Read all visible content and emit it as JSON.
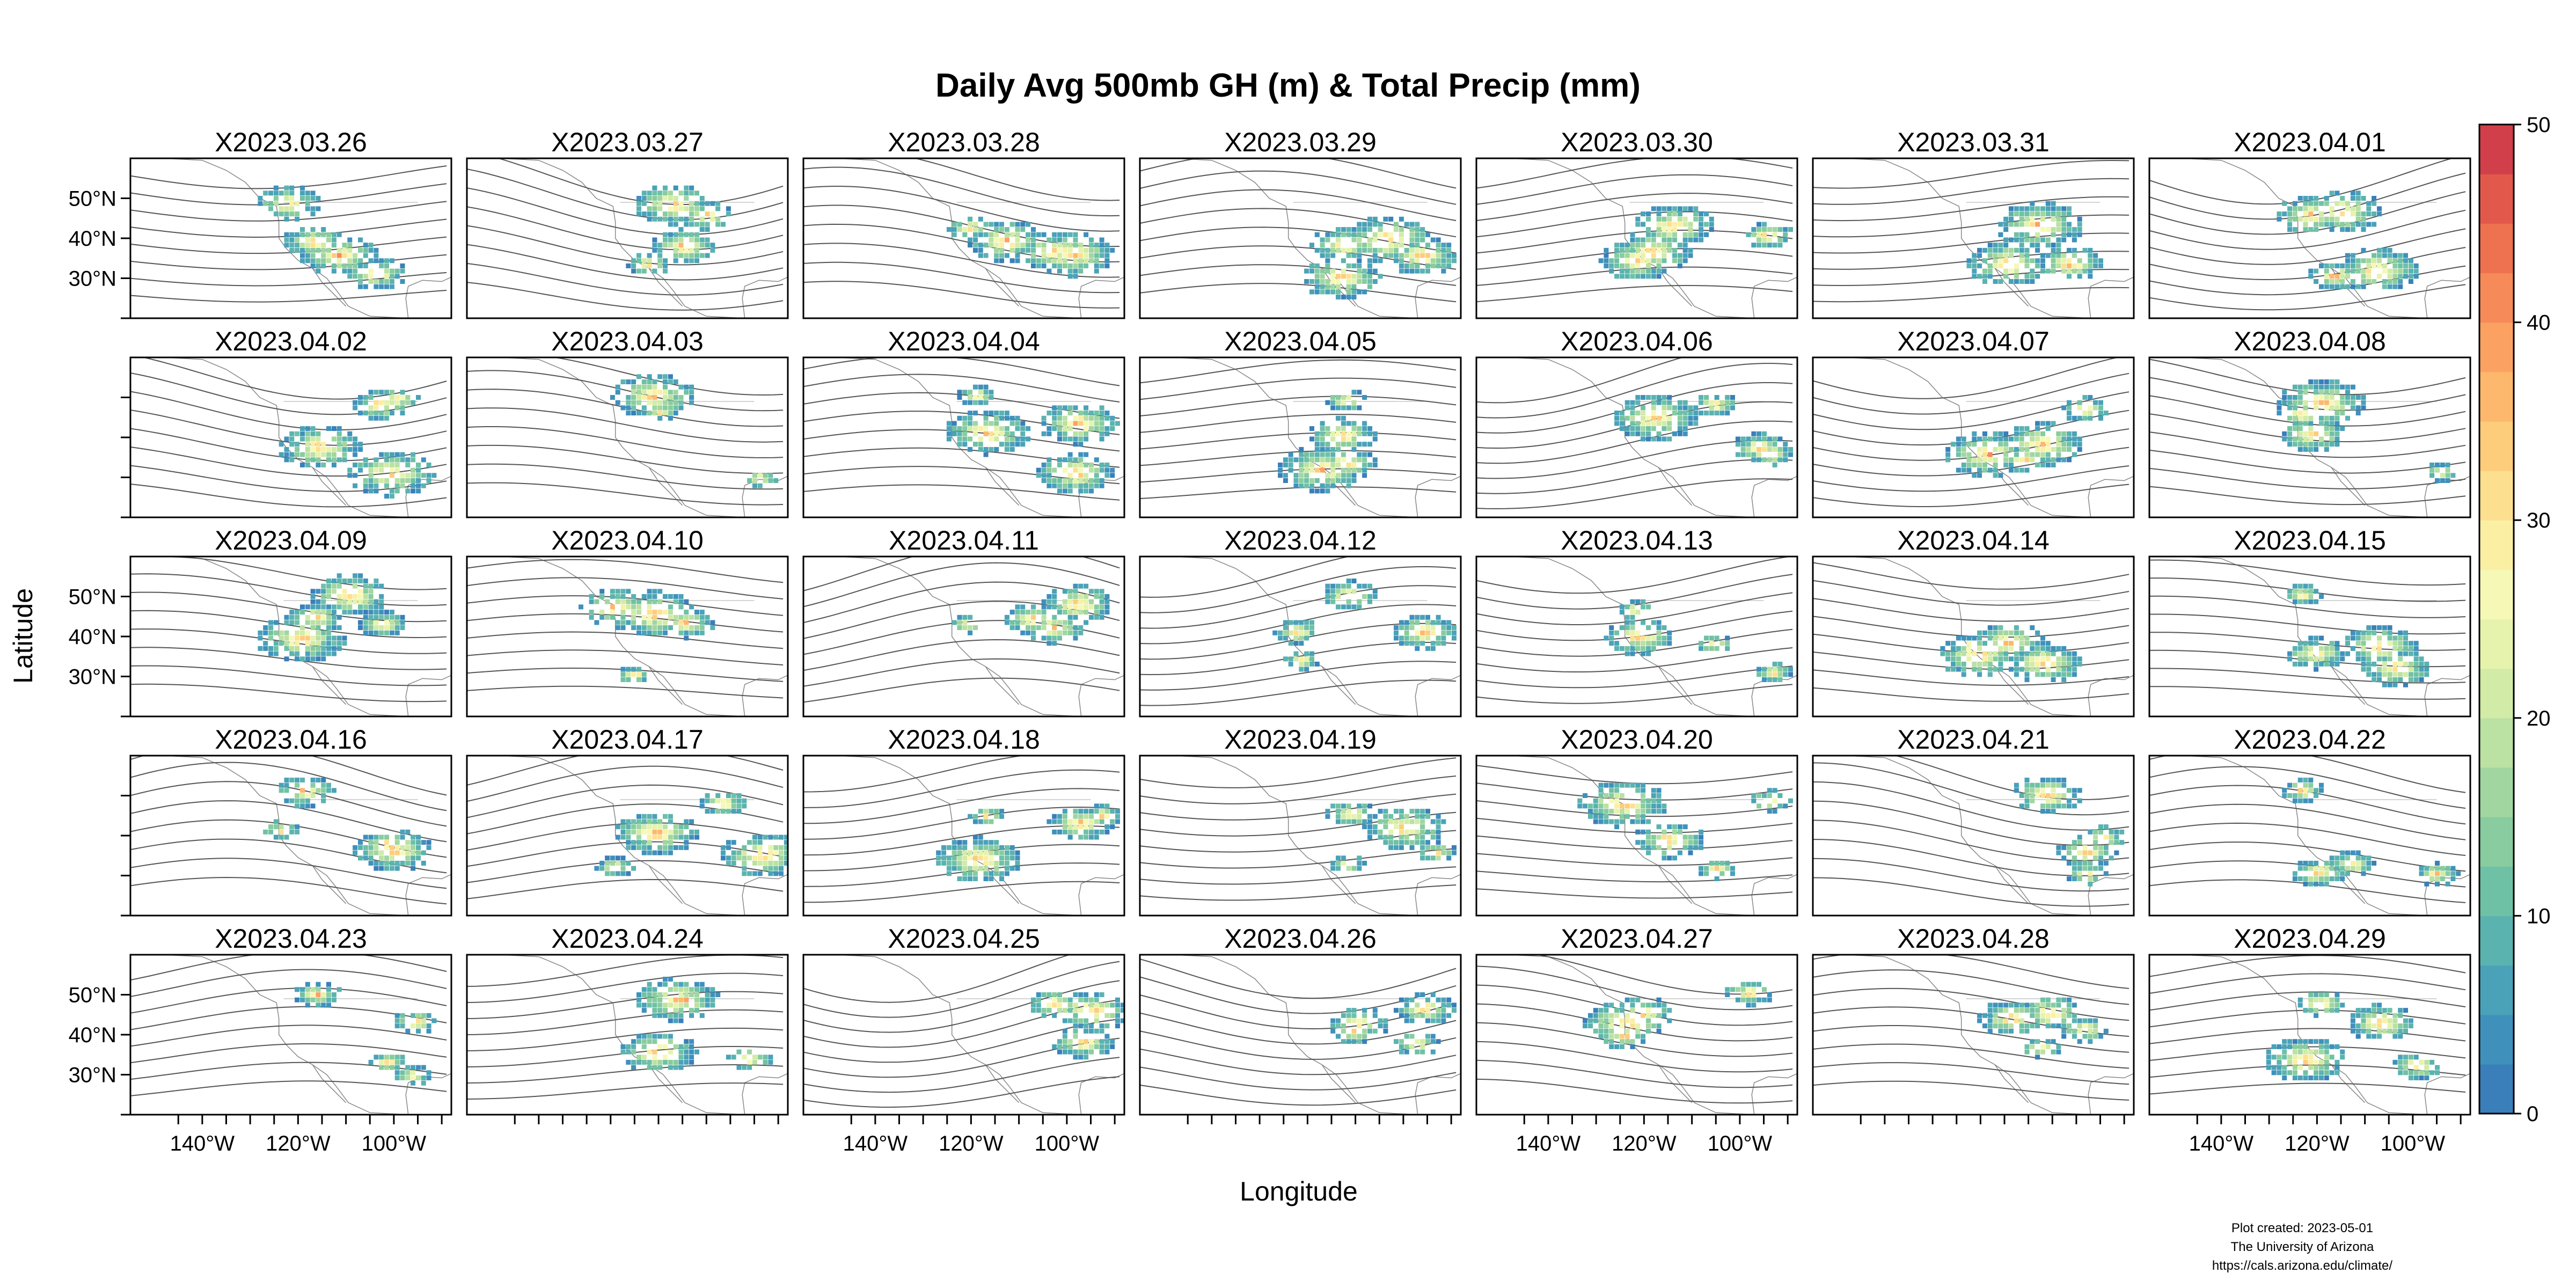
{
  "title": "Daily Avg 500mb GH (m) & Total Precip (mm)",
  "xlabel": "Longitude",
  "ylabel": "Latitude",
  "credits": [
    "Plot created: 2023-05-01",
    "The University of Arizona",
    "https://cals.arizona.edu/climate/"
  ],
  "chart_data": {
    "type": "heatmap",
    "layout": {
      "rows": 5,
      "cols": 7
    },
    "panels": [
      "X2023.03.26",
      "X2023.03.27",
      "X2023.03.28",
      "X2023.03.29",
      "X2023.03.30",
      "X2023.03.31",
      "X2023.04.01",
      "X2023.04.02",
      "X2023.04.03",
      "X2023.04.04",
      "X2023.04.05",
      "X2023.04.06",
      "X2023.04.07",
      "X2023.04.08",
      "X2023.04.09",
      "X2023.04.10",
      "X2023.04.11",
      "X2023.04.12",
      "X2023.04.13",
      "X2023.04.14",
      "X2023.04.15",
      "X2023.04.16",
      "X2023.04.17",
      "X2023.04.18",
      "X2023.04.19",
      "X2023.04.20",
      "X2023.04.21",
      "X2023.04.22",
      "X2023.04.23",
      "X2023.04.24",
      "X2023.04.25",
      "X2023.04.26",
      "X2023.04.27",
      "X2023.04.28",
      "X2023.04.29"
    ],
    "x_ticks": [
      {
        "value": -140,
        "label": "140°W"
      },
      {
        "value": -120,
        "label": "120°W"
      },
      {
        "value": -100,
        "label": "100°W"
      }
    ],
    "x_minor_ticks": [
      -145,
      -135,
      -130,
      -125,
      -115,
      -110,
      -105,
      -95,
      -90
    ],
    "y_ticks": [
      {
        "value": 50,
        "label": "50°N"
      },
      {
        "value": 40,
        "label": "40°N"
      },
      {
        "value": 30,
        "label": "30°N"
      }
    ],
    "y_minor_ticks": [
      20
    ],
    "xlim": [
      -155,
      -88
    ],
    "ylim": [
      20,
      60
    ],
    "x_label_columns": [
      0,
      2,
      4,
      6
    ],
    "y_label_rows": [
      0,
      2,
      4
    ],
    "colorbar": {
      "range": [
        0,
        50
      ],
      "tick_values": [
        0,
        10,
        20,
        30,
        40,
        50
      ],
      "tick_labels": [
        "0",
        "10",
        "20",
        "30",
        "40",
        "50"
      ],
      "colors": [
        "#3a7fb9",
        "#3f91bc",
        "#4aa2b8",
        "#5bb3b0",
        "#6fc1a6",
        "#88cc9f",
        "#a1d6a0",
        "#bbe1a3",
        "#d2eba6",
        "#e6f3ac",
        "#f6f8b6",
        "#fbefa4",
        "#fde08f",
        "#fdcd7c",
        "#fdb86d",
        "#fba263",
        "#f68a58",
        "#ee7150",
        "#e2594b",
        "#d13f4a"
      ]
    },
    "contour_levels": [
      "5100",
      "5200",
      "5300",
      "5400",
      "5500",
      "5700",
      "5900"
    ]
  }
}
